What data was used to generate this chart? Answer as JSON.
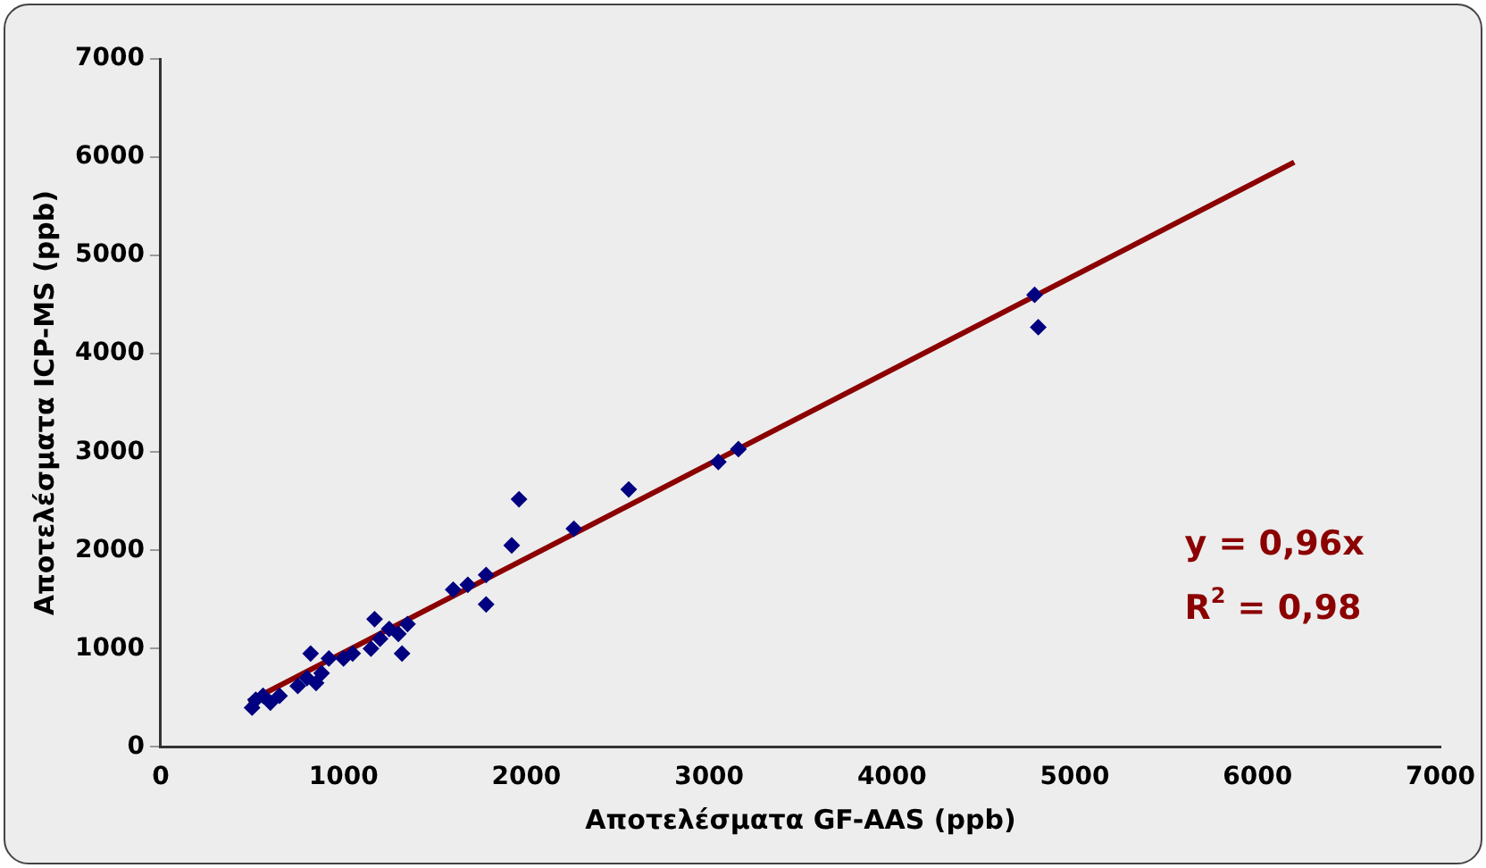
{
  "chart_data": {
    "type": "scatter",
    "xlabel": "Αποτελέσματα GF-AAS (ppb)",
    "ylabel": "Αποτελέσματα ICP-MS (ppb)",
    "xlim": [
      0,
      7000
    ],
    "xticks": [
      0,
      1000,
      2000,
      3000,
      4000,
      5000,
      6000,
      7000
    ],
    "ylim": [
      0,
      7000
    ],
    "yticks": [
      0,
      1000,
      2000,
      3000,
      4000,
      5000,
      6000,
      7000
    ],
    "grid": false,
    "legend": false,
    "marker": "diamond",
    "series": [
      {
        "color": "#000080",
        "x": [
          500,
          520,
          560,
          600,
          650,
          750,
          800,
          820,
          850,
          880,
          920,
          1000,
          1050,
          1150,
          1170,
          1200,
          1250,
          1300,
          1320,
          1350,
          1600,
          1680,
          1780,
          1780,
          1920,
          1960,
          2260,
          2560,
          3050,
          3160,
          4780,
          4800
        ],
        "values": [
          400,
          480,
          520,
          450,
          520,
          620,
          700,
          950,
          650,
          750,
          900,
          900,
          950,
          1000,
          1300,
          1100,
          1200,
          1150,
          950,
          1250,
          1600,
          1650,
          1750,
          1450,
          2050,
          2520,
          2220,
          2620,
          2900,
          3030,
          4600,
          4270
        ]
      },
      {
        "type": "line",
        "color": "#8b0000",
        "marker": "none",
        "x": [
          480,
          6200
        ],
        "values": [
          460,
          5950
        ]
      }
    ],
    "annotations": [
      "y = 0,96x",
      "R$^{2}$ = 0,98"
    ]
  }
}
